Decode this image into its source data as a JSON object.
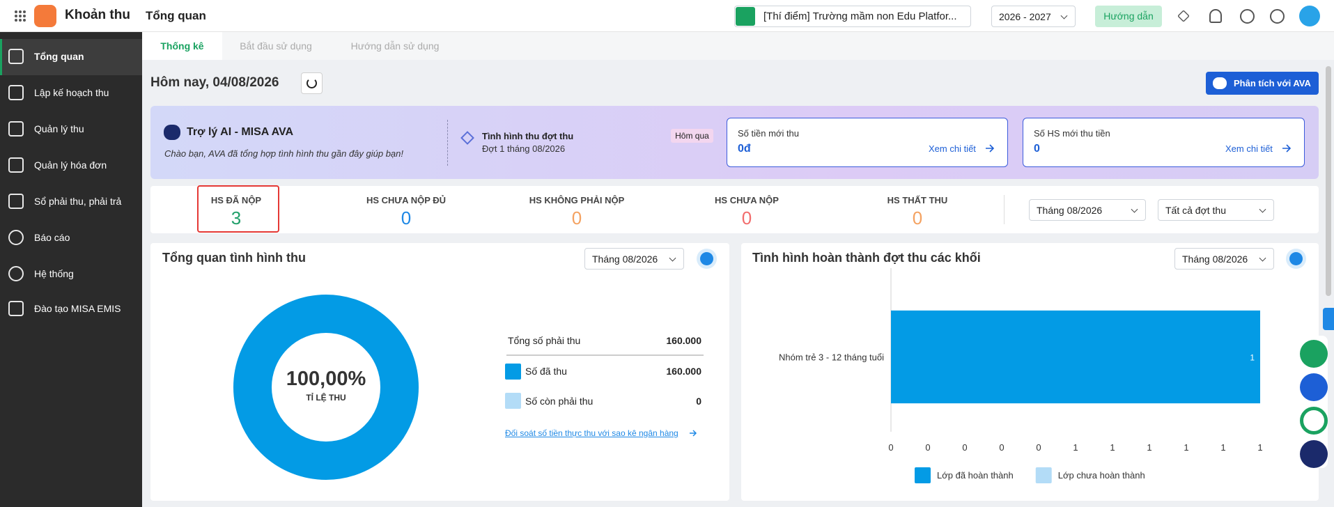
{
  "header": {
    "app_name": "Khoản thu",
    "page_title": "Tổng quan",
    "school": "[Thí điểm] Trường mầm non Edu Platfor...",
    "school_year": "2026 - 2027",
    "guide_button": "Hướng dẫn"
  },
  "sidebar": {
    "items": [
      "Tổng quan",
      "Lập kế hoạch thu",
      "Quản lý thu",
      "Quản lý hóa đơn",
      "Sổ phải thu, phải trả",
      "Báo cáo",
      "Hệ thống",
      "Đào tạo MISA EMIS"
    ]
  },
  "tabs": [
    "Thống kê",
    "Bắt đầu sử dụng",
    "Hướng dẫn sử dụng"
  ],
  "toolbar": {
    "date": "Hôm nay, 04/08/2026",
    "ava_button": "Phân tích với AVA"
  },
  "ava_banner": {
    "title": "Trợ lý AI - MISA AVA",
    "subtitle": "Chào bạn, AVA đã tổng hợp tình hình thu gần đây giúp bạn!",
    "status_title": "Tình hình thu đợt thu",
    "status_detail": "Đợt 1 tháng 08/2026",
    "badge": "Hôm qua",
    "cards": [
      {
        "label": "Số tiền mới thu",
        "value": "0đ",
        "link": "Xem chi tiết"
      },
      {
        "label": "Số HS mới thu tiền",
        "value": "0",
        "link": "Xem chi tiết"
      }
    ]
  },
  "stats": {
    "items": [
      {
        "label": "HS ĐÃ NỘP",
        "value": 3
      },
      {
        "label": "HS CHƯA NỘP ĐỦ",
        "value": 0
      },
      {
        "label": "HS KHÔNG PHẢI NỘP",
        "value": 0
      },
      {
        "label": "HS CHƯA NỘP",
        "value": 0
      },
      {
        "label": "HS THẤT THU",
        "value": 0
      }
    ],
    "month_filter": "Tháng 08/2026",
    "batch_filter": "Tất cả đợt thu"
  },
  "overview": {
    "title": "Tổng quan tình hình thu",
    "month_filter": "Tháng 08/2026",
    "rate": "100,00%",
    "rate_label": "TỈ LỆ THU",
    "rows": [
      [
        "Tổng số phải thu",
        "160.000"
      ],
      [
        "Số đã thu",
        "160.000"
      ],
      [
        "Số còn phải thu",
        "0"
      ]
    ],
    "link": "Đối soát số tiền thực thu với sao kê ngân hàng"
  },
  "completion": {
    "title": "Tình hình hoàn thành đợt thu các khối",
    "month_filter": "Tháng 08/2026",
    "chart": {
      "type": "bar",
      "orientation": "horizontal",
      "categories": [
        "Nhóm trẻ 3 - 12 tháng tuổi"
      ],
      "series": [
        {
          "name": "Lớp đã hoàn thành",
          "color": "#039be5",
          "values": [
            1
          ]
        },
        {
          "name": "Lớp chưa hoàn thành",
          "color": "#b3dcf7",
          "values": [
            0
          ]
        }
      ],
      "xlim": [
        0,
        1
      ],
      "xticks": [
        0,
        {
          "value": 0.1,
          "label": "0"
        },
        {
          "value": 0.2,
          "label": "0"
        },
        {
          "value": 0.3,
          "label": "0"
        },
        {
          "value": 0.4,
          "label": "0"
        },
        {
          "value": 0.5,
          "label": "1"
        },
        {
          "value": 0.6,
          "label": "1"
        },
        {
          "value": 0.7,
          "label": "1"
        },
        {
          "value": 0.8,
          "label": "1"
        },
        {
          "value": 0.9,
          "label": "1"
        },
        1
      ]
    }
  }
}
